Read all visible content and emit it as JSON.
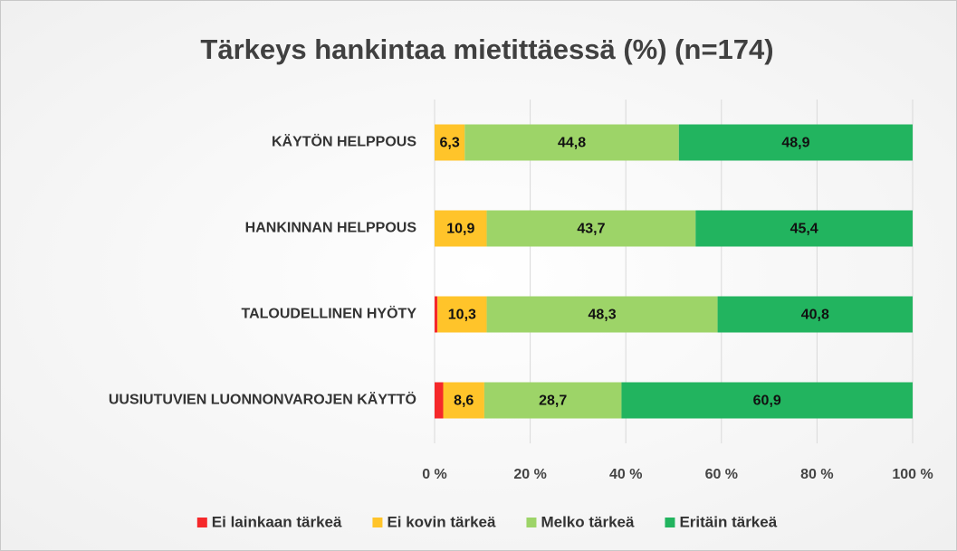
{
  "chart_data": {
    "type": "stacked_barh",
    "title": "Tärkeys hankintaa mietittäessä (%) (n=174)",
    "categories": [
      "KÄYTÖN HELPPOUS",
      "HANKINNAN HELPPOUS",
      "TALOUDELLINEN HYÖTY",
      "UUSIUTUVIEN LUONNONVAROJEN KÄYTTÖ"
    ],
    "series": [
      {
        "name": "Ei lainkaan tärkeä",
        "color": "#f5282a",
        "values": [
          0,
          0,
          0.6,
          1.8
        ]
      },
      {
        "name": "Ei kovin tärkeä",
        "color": "#ffc42a",
        "values": [
          6.3,
          10.9,
          10.3,
          8.6
        ],
        "value_labels": [
          "6,3",
          "10,9",
          "10,3",
          "8,6"
        ]
      },
      {
        "name": "Melko tärkeä",
        "color": "#9dd468",
        "values": [
          44.8,
          43.7,
          48.3,
          28.7
        ],
        "value_labels": [
          "44,8",
          "43,7",
          "48,3",
          "28,7"
        ]
      },
      {
        "name": "Eritäin tärkeä",
        "color": "#22b45f",
        "values": [
          48.9,
          45.4,
          40.8,
          60.9
        ],
        "value_labels": [
          "48,9",
          "45,4",
          "40,8",
          "60,9"
        ]
      }
    ],
    "xlim": [
      0,
      100
    ],
    "xticks": [
      {
        "value": 0,
        "label": "0 %"
      },
      {
        "value": 20,
        "label": "20 %"
      },
      {
        "value": 40,
        "label": "40 %"
      },
      {
        "value": 60,
        "label": "60 %"
      },
      {
        "value": 80,
        "label": "80 %"
      },
      {
        "value": 100,
        "label": "100 %"
      }
    ],
    "grid": true,
    "legend": "bottom"
  }
}
